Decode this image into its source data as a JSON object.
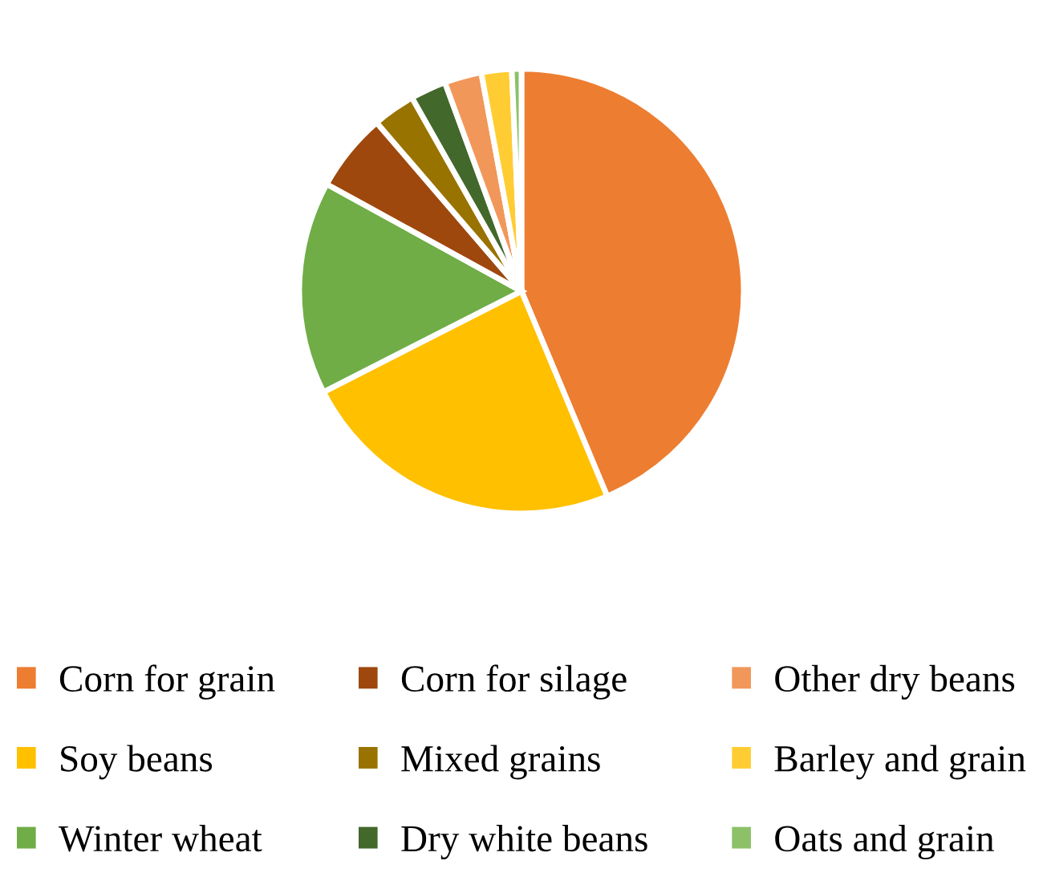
{
  "chart_data": {
    "type": "pie",
    "categories": [
      "Corn for grain",
      "Soy beans",
      "Winter wheat",
      "Corn for silage",
      "Mixed grains",
      "Dry white beans",
      "Other dry beans",
      "Barley and grain",
      "Oats and grain"
    ],
    "values": [
      43.7,
      23.8,
      15.5,
      5.7,
      3.1,
      2.6,
      2.7,
      2.2,
      0.7
    ],
    "colors": [
      "#ed7d31",
      "#ffc000",
      "#70ad47",
      "#9e480e",
      "#997300",
      "#43682b",
      "#f1975a",
      "#ffcd33",
      "#8cc168"
    ],
    "legend": "bottom"
  }
}
